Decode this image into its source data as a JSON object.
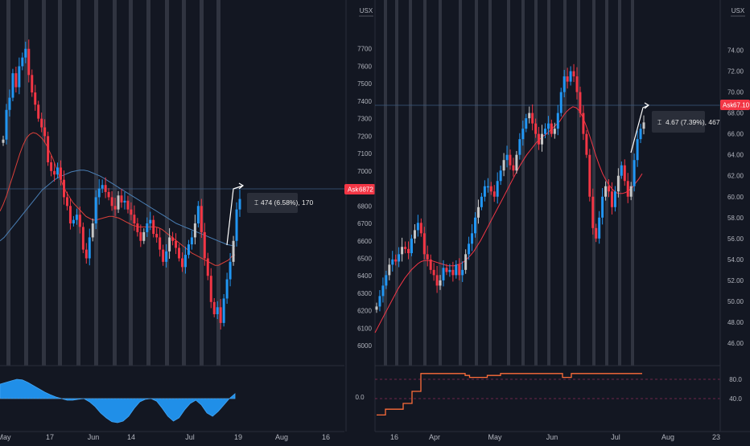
{
  "chart_data": [
    {
      "type": "candlestick",
      "panel": "left",
      "currency": "USX",
      "price_axis": {
        "ticks": [
          7700,
          7600,
          7500,
          7400,
          7300,
          7200,
          7100,
          7000,
          6900,
          6800,
          6700,
          6600,
          6500,
          6400,
          6300,
          6200,
          6100,
          6000
        ],
        "ylim": [
          5950,
          7800
        ]
      },
      "ask": {
        "label": "Ask",
        "value": "6872",
        "level": 6872
      },
      "time_axis": {
        "labels": [
          "May",
          "17",
          "Jun",
          "14",
          "Jul",
          "19",
          "Aug",
          "16"
        ]
      },
      "closes": [
        7180,
        7350,
        7420,
        7560,
        7480,
        7600,
        7650,
        7700,
        7550,
        7450,
        7380,
        7300,
        7250,
        7200,
        7050,
        7000,
        6980,
        7020,
        6950,
        6850,
        6800,
        6700,
        6720,
        6750,
        6680,
        6550,
        6500,
        6620,
        6700,
        6850,
        6900,
        6920,
        6880,
        6850,
        6800,
        6780,
        6860,
        6820,
        6830,
        6780,
        6750,
        6700,
        6650,
        6600,
        6650,
        6700,
        6720,
        6640,
        6620,
        6550,
        6480,
        6540,
        6620,
        6600,
        6560,
        6500,
        6450,
        6520,
        6580,
        6620,
        6700,
        6800,
        6650,
        6500,
        6400,
        6250,
        6180,
        6220,
        6130,
        6270,
        6380,
        6480,
        6600,
        6780,
        6840
      ],
      "ma_fast": {
        "x_start": 0,
        "values": [
          6770,
          6810,
          6860,
          6920,
          6980,
          7040,
          7100,
          7150,
          7190,
          7210,
          7220,
          7215,
          7200,
          7180,
          7150,
          7110,
          7070,
          7020,
          6970,
          6920,
          6880,
          6850,
          6820,
          6800,
          6780,
          6760,
          6740,
          6730,
          6720,
          6720,
          6725,
          6730,
          6735,
          6740,
          6740,
          6735,
          6730,
          6720,
          6710,
          6700,
          6690,
          6685,
          6680,
          6680,
          6680,
          6680,
          6680,
          6680,
          6675,
          6665,
          6650,
          6635,
          6620,
          6605,
          6590,
          6575,
          6560,
          6545,
          6530,
          6520,
          6510,
          6500,
          6490,
          6480,
          6470,
          6460,
          6460,
          6470,
          6480,
          6490,
          6510,
          6520
        ]
      },
      "ma_slow": {
        "x_start": 0,
        "values": [
          6600,
          6620,
          6650,
          6680,
          6710,
          6740,
          6770,
          6800,
          6830,
          6860,
          6890,
          6910,
          6930,
          6950,
          6965,
          6975,
          6985,
          6995,
          7000,
          7005,
          7005,
          7000,
          6990,
          6980,
          6970,
          6955,
          6940,
          6925,
          6910,
          6895,
          6880,
          6865,
          6850,
          6835,
          6820,
          6805,
          6790,
          6775,
          6760,
          6745,
          6730,
          6715,
          6700,
          6690,
          6680,
          6670,
          6660,
          6650,
          6640,
          6630,
          6620,
          6610,
          6600,
          6590,
          6580,
          6575,
          6570
        ]
      },
      "measure": {
        "text": "474 (6.58%), 170"
      },
      "oscillator": {
        "label": "0.0",
        "values": [
          0.45,
          0.5,
          0.55,
          0.6,
          0.58,
          0.5,
          0.4,
          0.3,
          0.2,
          0.12,
          0.05,
          0.0,
          -0.05,
          -0.05,
          -0.02,
          0.0,
          -0.1,
          -0.25,
          -0.45,
          -0.6,
          -0.72,
          -0.75,
          -0.7,
          -0.55,
          -0.3,
          -0.1,
          -0.02,
          0.0,
          -0.08,
          -0.3,
          -0.55,
          -0.7,
          -0.6,
          -0.35,
          -0.15,
          -0.05,
          -0.2,
          -0.45,
          -0.55,
          -0.4,
          -0.2,
          0.0,
          0.15
        ]
      }
    },
    {
      "type": "candlestick",
      "panel": "right",
      "currency": "USX",
      "price_axis": {
        "ticks": [
          74.0,
          72.0,
          70.0,
          68.0,
          66.0,
          64.0,
          62.0,
          60.0,
          58.0,
          56.0,
          54.0,
          52.0,
          50.0,
          48.0,
          46.0
        ],
        "ylim": [
          45.0,
          75.5
        ]
      },
      "ask": {
        "label": "Ask",
        "value": "67.10",
        "level": 67.1
      },
      "time_axis": {
        "labels": [
          "16",
          "Apr",
          "May",
          "Jun",
          "Jul",
          "Aug",
          "23"
        ]
      },
      "closes": [
        49.5,
        50.5,
        51.5,
        52.5,
        53.5,
        54.0,
        53.8,
        54.5,
        55.2,
        55.0,
        54.6,
        56.0,
        56.8,
        57.5,
        56.5,
        54.5,
        54.0,
        53.0,
        52.5,
        51.5,
        52.0,
        53.2,
        52.8,
        53.0,
        52.5,
        53.5,
        52.5,
        53.0,
        54.5,
        55.5,
        56.5,
        58.0,
        59.0,
        60.0,
        61.0,
        61.0,
        60.5,
        60.0,
        61.5,
        62.5,
        63.5,
        64.0,
        63.0,
        62.5,
        64.0,
        65.5,
        66.5,
        67.5,
        68.0,
        67.0,
        66.0,
        65.0,
        66.0,
        66.5,
        67.0,
        66.0,
        66.5,
        68.0,
        70.0,
        71.5,
        71.0,
        72.0,
        71.5,
        70.0,
        68.0,
        66.0,
        64.0,
        60.0,
        57.0,
        56.0,
        58.0,
        60.0,
        61.0,
        60.5,
        59.0,
        60.5,
        62.0,
        63.0,
        61.5,
        60.0,
        61.0,
        63.5,
        65.5,
        66.5,
        67.1
      ],
      "ma": {
        "x_start": 0,
        "values": [
          47.0,
          47.6,
          48.2,
          48.8,
          49.4,
          50.0,
          50.6,
          51.2,
          51.7,
          52.2,
          52.6,
          53.0,
          53.3,
          53.6,
          53.8,
          53.9,
          53.9,
          53.9,
          53.8,
          53.7,
          53.6,
          53.5,
          53.4,
          53.4,
          53.4,
          53.5,
          53.6,
          53.8,
          54.1,
          54.4,
          54.8,
          55.3,
          55.8,
          56.4,
          57.0,
          57.6,
          58.2,
          58.8,
          59.4,
          60.0,
          60.6,
          61.2,
          61.8,
          62.4,
          63.0,
          63.5,
          64.0,
          64.4,
          64.8,
          65.2,
          65.5,
          65.8,
          66.0,
          66.3,
          66.6,
          66.9,
          67.2,
          67.7,
          68.1,
          68.4,
          68.6,
          68.5,
          68.2,
          67.6,
          66.8,
          65.9,
          64.9,
          63.9,
          63.0,
          62.2,
          61.6,
          61.1,
          60.7,
          60.4,
          60.3,
          60.3,
          60.4,
          60.6,
          60.9,
          61.3,
          61.7,
          62.2
        ]
      },
      "measure": {
        "text": "4.67 (7.39%), 467"
      },
      "oscillator": {
        "ticks": [
          "80.0",
          "40.0"
        ],
        "values": [
          6,
          6,
          18,
          18,
          18,
          18,
          30,
          30,
          55,
          55,
          92,
          92,
          92,
          92,
          92,
          92,
          92,
          92,
          92,
          92,
          88,
          84,
          84,
          84,
          84,
          88,
          88,
          88,
          92,
          92,
          92,
          92,
          92,
          92,
          92,
          92,
          92,
          92,
          92,
          92,
          92,
          92,
          84,
          84,
          92,
          92,
          92,
          92,
          92,
          92,
          92,
          92,
          92,
          92,
          92,
          92,
          92,
          92,
          92,
          92,
          92
        ]
      }
    }
  ]
}
